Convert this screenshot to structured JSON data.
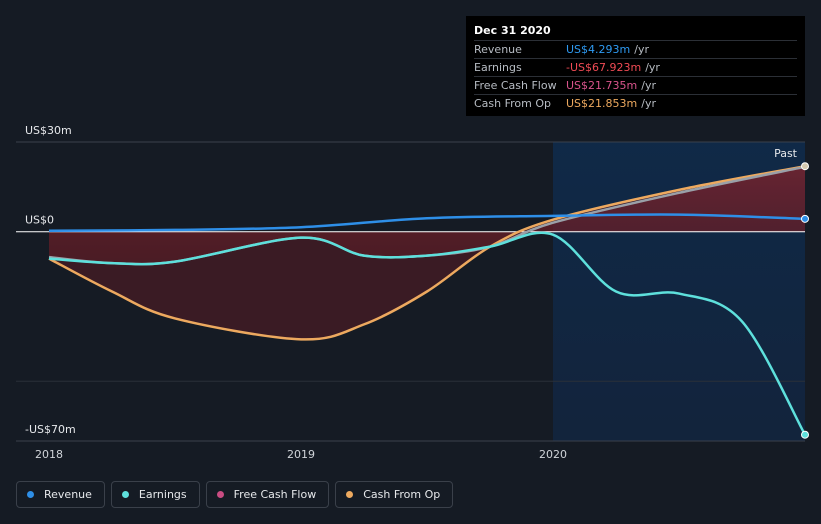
{
  "tooltip": {
    "date": "Dec 31 2020",
    "rows": [
      {
        "name": "Revenue",
        "value": "US$4.293m",
        "unit": "/yr",
        "color": "#2e9af2"
      },
      {
        "name": "Earnings",
        "value": "-US$67.923m",
        "unit": "/yr",
        "color": "#f04b55"
      },
      {
        "name": "Free Cash Flow",
        "value": "US$21.735m",
        "unit": "/yr",
        "color": "#d9548c"
      },
      {
        "name": "Cash From Op",
        "value": "US$21.853m",
        "unit": "/yr",
        "color": "#eda95f"
      }
    ]
  },
  "past_label": "Past",
  "legend": [
    {
      "name": "Revenue",
      "color": "#2e8fe8"
    },
    {
      "name": "Earnings",
      "color": "#5ee0dc"
    },
    {
      "name": "Free Cash Flow",
      "color": "#c94c82"
    },
    {
      "name": "Cash From Op",
      "color": "#eda95f"
    }
  ],
  "chart_data": {
    "type": "line",
    "y_ticks": [
      {
        "value": 30,
        "label": "US$30m"
      },
      {
        "value": 0,
        "label": "US$0"
      },
      {
        "value": -70,
        "label": "-US$70m"
      }
    ],
    "x_ticks": [
      {
        "value": 2018,
        "label": "2018"
      },
      {
        "value": 2019,
        "label": "2019"
      },
      {
        "value": 2020,
        "label": "2020"
      }
    ],
    "xlim": [
      2018,
      2021
    ],
    "ylim": [
      -70,
      30
    ],
    "series": [
      {
        "name": "Revenue",
        "color": "#2e8fe8",
        "points": [
          [
            2018.0,
            0.3
          ],
          [
            2018.5,
            0.6
          ],
          [
            2019.0,
            1.5
          ],
          [
            2019.5,
            4.5
          ],
          [
            2020.0,
            5.3
          ],
          [
            2020.5,
            5.7
          ],
          [
            2021.0,
            4.3
          ]
        ]
      },
      {
        "name": "Earnings",
        "color": "#5ee0dc",
        "points": [
          [
            2018.0,
            -9
          ],
          [
            2018.25,
            -10.5
          ],
          [
            2018.5,
            -10
          ],
          [
            2019.0,
            -2
          ],
          [
            2019.25,
            -8
          ],
          [
            2019.5,
            -8
          ],
          [
            2019.75,
            -5
          ],
          [
            2020.0,
            -1
          ],
          [
            2020.25,
            -20
          ],
          [
            2020.5,
            -20.7
          ],
          [
            2020.75,
            -30
          ],
          [
            2021.0,
            -67.9
          ]
        ]
      },
      {
        "name": "Free Cash Flow",
        "color": "#c94c82",
        "points": [
          [
            2018.0,
            -8.5
          ],
          [
            2018.25,
            -10.5
          ],
          [
            2018.5,
            -10
          ],
          [
            2019.0,
            -2
          ],
          [
            2019.25,
            -8
          ],
          [
            2019.5,
            -8
          ],
          [
            2019.75,
            -5
          ],
          [
            2020.0,
            3
          ],
          [
            2020.5,
            13
          ],
          [
            2021.0,
            21.7
          ]
        ]
      },
      {
        "name": "Cash From Op",
        "color": "#eda95f",
        "points": [
          [
            2018.0,
            -9
          ],
          [
            2018.25,
            -20
          ],
          [
            2018.5,
            -29
          ],
          [
            2019.0,
            -36
          ],
          [
            2019.25,
            -31
          ],
          [
            2019.5,
            -20
          ],
          [
            2019.75,
            -5
          ],
          [
            2020.0,
            4
          ],
          [
            2020.5,
            14
          ],
          [
            2021.0,
            21.9
          ]
        ]
      }
    ],
    "forecast_region_start": 2020.0
  }
}
